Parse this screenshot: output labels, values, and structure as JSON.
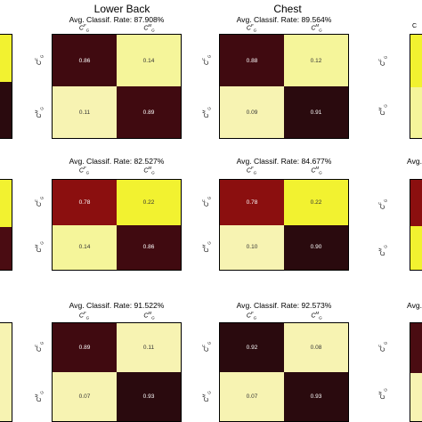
{
  "columns": [
    {
      "title": "Lower Back"
    },
    {
      "title": "Chest"
    }
  ],
  "labels": {
    "col_female": "C",
    "col_male": "C",
    "sup_f": "F",
    "sup_m": "M",
    "sub": "G"
  },
  "chart_data": [
    {
      "type": "heatmap",
      "column": "Lower Back",
      "row": 1,
      "title": "Avg. Classif. Rate: 87.908%",
      "values": [
        [
          0.86,
          0.14
        ],
        [
          0.11,
          0.89
        ]
      ],
      "display": [
        [
          "0.86",
          "0.14"
        ],
        [
          "0.11",
          "0.89"
        ]
      ]
    },
    {
      "type": "heatmap",
      "column": "Chest",
      "row": 1,
      "title": "Avg. Classif. Rate: 89.564%",
      "values": [
        [
          0.88,
          0.12
        ],
        [
          0.09,
          0.91
        ]
      ],
      "display": [
        [
          "0.88",
          "0.12"
        ],
        [
          "0.09",
          "0.91"
        ]
      ]
    },
    {
      "type": "heatmap",
      "column": "Lower Back",
      "row": 2,
      "title": "Avg. Classif. Rate: 82.527%",
      "values": [
        [
          0.78,
          0.22
        ],
        [
          0.14,
          0.86
        ]
      ],
      "display": [
        [
          "0.78",
          "0.22"
        ],
        [
          "0.14",
          "0.86"
        ]
      ]
    },
    {
      "type": "heatmap",
      "column": "Chest",
      "row": 2,
      "title": "Avg. Classif. Rate: 84.677%",
      "values": [
        [
          0.78,
          0.22
        ],
        [
          0.1,
          0.9
        ]
      ],
      "display": [
        [
          "0.78",
          "0.22"
        ],
        [
          "0.10",
          "0.90"
        ]
      ]
    },
    {
      "type": "heatmap",
      "column": "Lower Back",
      "row": 3,
      "title": "Avg. Classif. Rate: 91.522%",
      "values": [
        [
          0.89,
          0.11
        ],
        [
          0.07,
          0.93
        ]
      ],
      "display": [
        [
          "0.89",
          "0.11"
        ],
        [
          "0.07",
          "0.93"
        ]
      ]
    },
    {
      "type": "heatmap",
      "column": "Chest",
      "row": 3,
      "title": "Avg. Classif. Rate: 92.573%",
      "values": [
        [
          0.92,
          0.08
        ],
        [
          0.07,
          0.93
        ]
      ],
      "display": [
        [
          "0.92",
          "0.08"
        ],
        [
          "0.07",
          "0.93"
        ]
      ]
    }
  ],
  "right_partial": {
    "subtitle_row2": "Avg. C",
    "subtitle_row3": "Avg. C",
    "top_label": "C"
  },
  "colors": {
    "cell_dark": "#2a0a0e",
    "cell_darkred": "#4a0c12",
    "cell_red": "#8b0f0f",
    "cell_yellow": "#f2f230",
    "cell_lightyellow": "#f5f59a",
    "cell_paleyellow": "#f7f3b2"
  }
}
